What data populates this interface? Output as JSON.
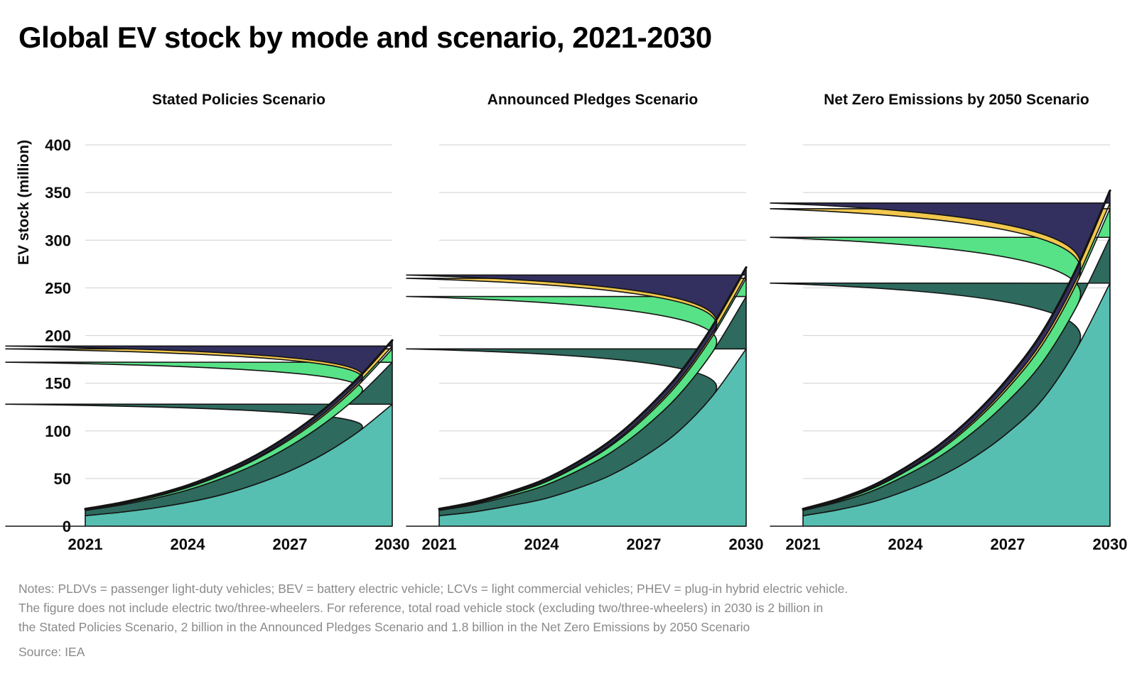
{
  "page": {
    "title": "Global EV stock by mode and scenario, 2021-2030",
    "notes_lines": [
      "Notes: PLDVs = passenger light-duty vehicles; BEV = battery electric vehicle; LCVs = light commercial vehicles; PHEV = plug-in hybrid electric vehicle.",
      "The figure does not include electric two/three-wheelers. For reference, total road vehicle stock (excluding two/three-wheelers) in 2030 is 2 billion in",
      "the Stated Policies Scenario, 2 billion in the Announced Pledges Scenario and 1.8 billion in the Net Zero Emissions by 2050 Scenario"
    ],
    "source": "Source: IEA"
  },
  "axis": {
    "y_label": "EV stock (million)",
    "y_ticks": [
      0,
      50,
      100,
      150,
      200,
      250,
      300,
      350,
      400
    ],
    "y_max": 400,
    "x_ticks": [
      2021,
      2024,
      2027,
      2030
    ]
  },
  "colors": {
    "teal": "#57BFB1",
    "dark_green": "#2E6A5E",
    "light_green": "#58E287",
    "yellow": "#F2C84D",
    "navy": "#33305F",
    "outline": "#141414",
    "gridline": "#D9D9D9",
    "tick_text": "#0b0b0b",
    "notes_text": "#8a8a8a"
  },
  "chart_data": [
    {
      "type": "area",
      "stacked": true,
      "title": "Stated Policies Scenario",
      "xlabel": "",
      "ylabel": "EV stock (million)",
      "ylim": [
        0,
        400
      ],
      "grid": true,
      "legend": "none",
      "x": [
        2021,
        2022,
        2023,
        2024,
        2025,
        2026,
        2027,
        2028,
        2029,
        2030
      ],
      "series": [
        {
          "name": "teal (bottom layer)",
          "color": "#57BFB1",
          "values": [
            11,
            14.5,
            19,
            25,
            33,
            44,
            58,
            76,
            99,
            128
          ]
        },
        {
          "name": "dark green layer",
          "color": "#2E6A5E",
          "values": [
            5.5,
            7.5,
            10,
            13,
            17,
            21,
            26,
            31.5,
            37.5,
            44
          ]
        },
        {
          "name": "light green layer",
          "color": "#58E287",
          "values": [
            0.6,
            1.0,
            1.6,
            2.5,
            3.7,
            5.2,
            6.9,
            8.9,
            11.3,
            14
          ]
        },
        {
          "name": "yellow layer",
          "color": "#F2C84D",
          "values": [
            0.2,
            0.3,
            0.45,
            0.65,
            0.9,
            1.2,
            1.6,
            2.0,
            2.5,
            3
          ]
        },
        {
          "name": "dark navy top layer",
          "color": "#33305F",
          "values": [
            0.8,
            1.0,
            1.3,
            1.7,
            2.2,
            2.8,
            3.5,
            4.3,
            5.1,
            6
          ]
        }
      ],
      "total_2030": 195
    },
    {
      "type": "area",
      "stacked": true,
      "title": "Announced Pledges Scenario",
      "xlabel": "",
      "ylabel": "EV stock (million)",
      "ylim": [
        0,
        400
      ],
      "grid": true,
      "legend": "none",
      "x": [
        2021,
        2022,
        2023,
        2024,
        2025,
        2026,
        2027,
        2028,
        2029,
        2030
      ],
      "series": [
        {
          "name": "teal (bottom layer)",
          "color": "#57BFB1",
          "values": [
            11,
            15,
            21,
            28,
            39,
            53,
            73,
            99,
            136,
            186
          ]
        },
        {
          "name": "dark green layer",
          "color": "#2E6A5E",
          "values": [
            5.5,
            7.5,
            10,
            13.5,
            18,
            23.5,
            30,
            37.5,
            46,
            55
          ]
        },
        {
          "name": "light green layer",
          "color": "#58E287",
          "values": [
            0.6,
            1.1,
            1.9,
            3.1,
            4.8,
            7,
            9.7,
            12.9,
            16.5,
            19
          ]
        },
        {
          "name": "yellow layer",
          "color": "#F2C84D",
          "values": [
            0.2,
            0.3,
            0.5,
            0.8,
            1.1,
            1.5,
            2.0,
            2.5,
            3.0,
            3.5
          ]
        },
        {
          "name": "dark navy top layer",
          "color": "#33305F",
          "values": [
            0.8,
            1.1,
            1.6,
            2.2,
            3.0,
            4.0,
            5.1,
            6.3,
            7.6,
            8
          ]
        }
      ],
      "total_2030": 271.5
    },
    {
      "type": "area",
      "stacked": true,
      "title": "Net Zero Emissions by 2050 Scenario",
      "xlabel": "",
      "ylabel": "EV stock (million)",
      "ylim": [
        0,
        400
      ],
      "grid": true,
      "legend": "none",
      "x": [
        2021,
        2022,
        2023,
        2024,
        2025,
        2026,
        2027,
        2028,
        2029,
        2030
      ],
      "series": [
        {
          "name": "teal (bottom layer)",
          "color": "#57BFB1",
          "values": [
            11,
            17,
            25,
            37,
            52,
            72,
            98,
            132,
            185,
            255
          ]
        },
        {
          "name": "dark green layer",
          "color": "#2E6A5E",
          "values": [
            5.5,
            8,
            11.5,
            16,
            21,
            27,
            33,
            39,
            44,
            48
          ]
        },
        {
          "name": "light green layer",
          "color": "#58E287",
          "values": [
            0.6,
            1.3,
            2.5,
            4.2,
            6.5,
            9.5,
            13.5,
            18.5,
            24,
            30
          ]
        },
        {
          "name": "yellow layer",
          "color": "#F2C84D",
          "values": [
            0.2,
            0.4,
            0.7,
            1.1,
            1.6,
            2.2,
            3.0,
            4.0,
            5.0,
            6
          ]
        },
        {
          "name": "dark navy top layer",
          "color": "#33305F",
          "values": [
            0.8,
            1.3,
            2.0,
            3.0,
            4.2,
            5.6,
            7.3,
            9.2,
            11,
            13
          ]
        }
      ],
      "total_2030": 352
    }
  ]
}
